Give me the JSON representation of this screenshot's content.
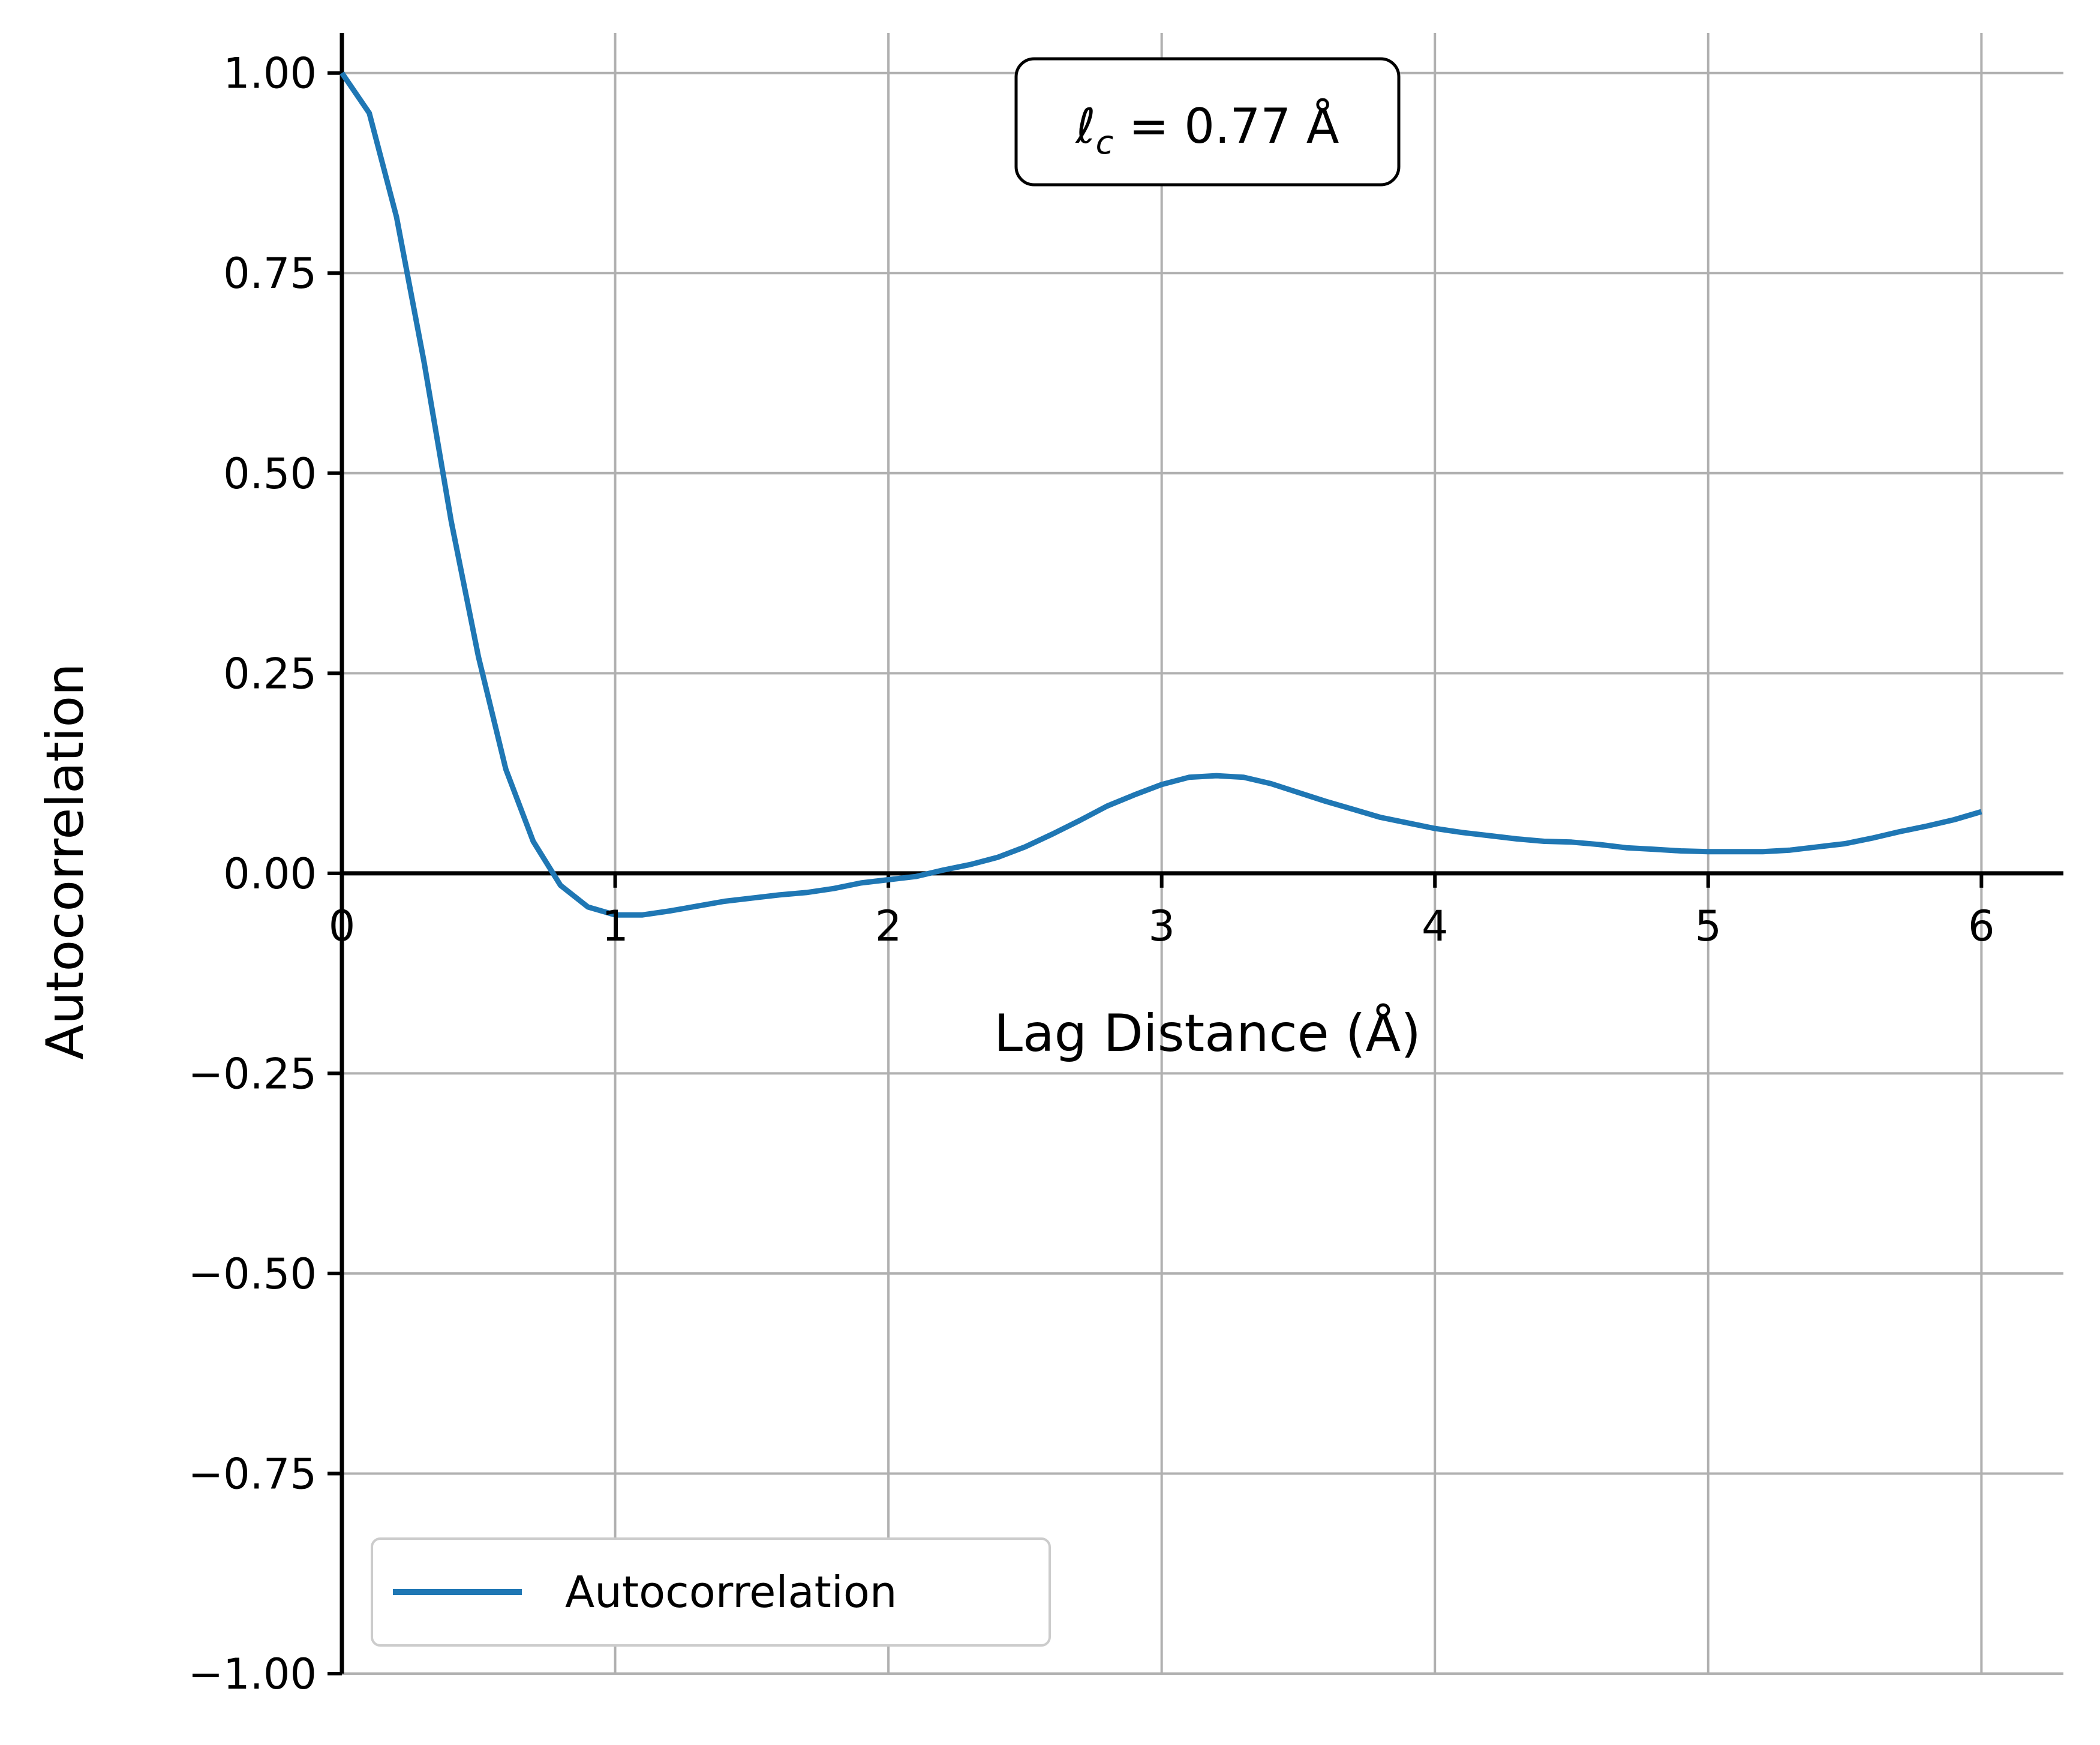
{
  "chart_data": {
    "type": "line",
    "title": "",
    "xlabel": "Lag Distance (Å)",
    "ylabel": "Autocorrelation",
    "xlim": [
      0,
      6.3
    ],
    "ylim": [
      -1.0,
      1.05
    ],
    "xticks": [
      0,
      1,
      2,
      3,
      4,
      5,
      6
    ],
    "xtick_labels": [
      "0",
      "1",
      "2",
      "3",
      "4",
      "5",
      "6"
    ],
    "yticks": [
      -1.0,
      -0.75,
      -0.5,
      -0.25,
      0.0,
      0.25,
      0.5,
      0.75,
      1.0
    ],
    "ytick_labels": [
      "−1.00",
      "−0.75",
      "−0.50",
      "−0.25",
      "0.00",
      "0.25",
      "0.50",
      "0.75",
      "1.00"
    ],
    "grid": true,
    "legend": {
      "placement": "lower-left",
      "entries": [
        "Autocorrelation"
      ]
    },
    "annotation": {
      "symbol": "ℓ",
      "subscript": "c",
      "text": " = 0.77 Å",
      "placement": "top-center"
    },
    "series": [
      {
        "name": "Autocorrelation",
        "color": "#1f77b4",
        "x": [
          0,
          0.1,
          0.2,
          0.3,
          0.4,
          0.5,
          0.6,
          0.7,
          0.8,
          0.9,
          1.0,
          1.1,
          1.2,
          1.3,
          1.4,
          1.5,
          1.6,
          1.7,
          1.8,
          1.9,
          2.0,
          2.1,
          2.2,
          2.3,
          2.4,
          2.5,
          2.6,
          2.7,
          2.8,
          2.9,
          3.0,
          3.1,
          3.2,
          3.3,
          3.4,
          3.5,
          3.6,
          3.7,
          3.8,
          3.9,
          4.0,
          4.1,
          4.2,
          4.3,
          4.4,
          4.5,
          4.6,
          4.7,
          4.8,
          4.9,
          5.0,
          5.1,
          5.2,
          5.3,
          5.4,
          5.5,
          5.6,
          5.7,
          5.8,
          5.9,
          6.0
        ],
        "y": [
          1.0,
          0.95,
          0.82,
          0.64,
          0.44,
          0.27,
          0.13,
          0.04,
          -0.015,
          -0.042,
          -0.052,
          -0.052,
          -0.047,
          -0.041,
          -0.035,
          -0.031,
          -0.027,
          -0.024,
          -0.019,
          -0.012,
          -0.008,
          -0.004,
          0.004,
          0.011,
          0.02,
          0.033,
          0.049,
          0.066,
          0.084,
          0.098,
          0.111,
          0.12,
          0.122,
          0.12,
          0.112,
          0.101,
          0.09,
          0.08,
          0.07,
          0.063,
          0.056,
          0.051,
          0.047,
          0.043,
          0.04,
          0.039,
          0.036,
          0.032,
          0.03,
          0.028,
          0.027,
          0.027,
          0.027,
          0.029,
          0.033,
          0.037,
          0.044,
          0.052,
          0.059,
          0.067,
          0.077
        ]
      }
    ]
  }
}
